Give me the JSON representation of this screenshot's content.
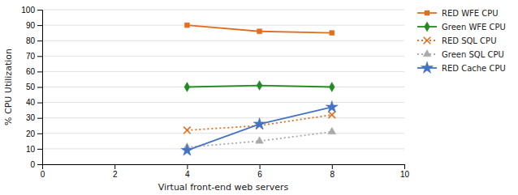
{
  "chart_data": {
    "type": "line",
    "x": [
      4,
      6,
      8
    ],
    "series": [
      {
        "name": "RED WFE CPU",
        "color": "#E07020",
        "values": [
          90,
          86,
          85
        ],
        "marker": "square",
        "line_style": "solid"
      },
      {
        "name": "Green WFE CPU",
        "color": "#228B22",
        "values": [
          50,
          51,
          50
        ],
        "marker": "diamond",
        "line_style": "solid"
      },
      {
        "name": "RED SQL CPU",
        "color": "#E07020",
        "values": [
          22,
          25,
          32
        ],
        "marker": "x",
        "line_style": "dotted"
      },
      {
        "name": "Green SQL CPU",
        "color": "#AAAAAA",
        "values": [
          11,
          15,
          21
        ],
        "marker": "triangle",
        "line_style": "dotted"
      },
      {
        "name": "RED Cache CPU",
        "color": "#4472C4",
        "values": [
          9,
          26,
          37
        ],
        "marker": "star",
        "line_style": "solid"
      }
    ],
    "xlim": [
      0,
      10
    ],
    "ylim": [
      0,
      100
    ],
    "xticks": [
      0,
      2,
      4,
      6,
      8,
      10
    ],
    "yticks": [
      0,
      10,
      20,
      30,
      40,
      50,
      60,
      70,
      80,
      90,
      100
    ],
    "xlabel": "Virtual front-end web servers",
    "ylabel": "% CPU Utilization",
    "grid": "y",
    "legend": "right"
  }
}
